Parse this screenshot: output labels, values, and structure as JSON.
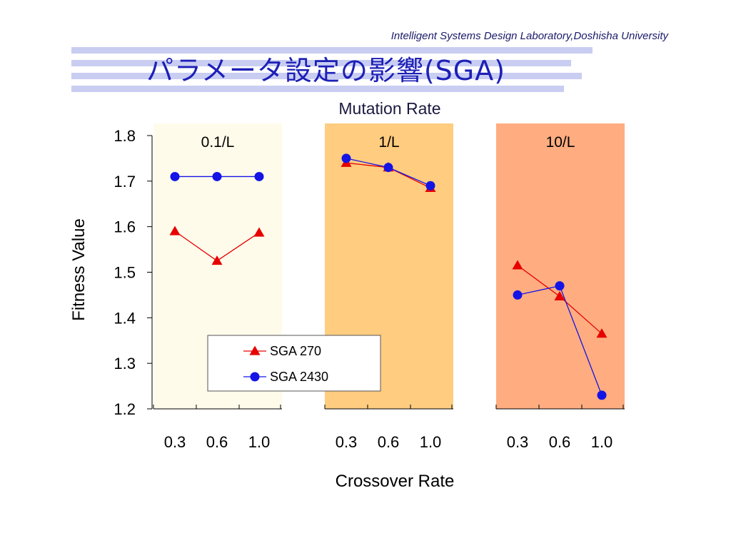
{
  "header": {
    "lab_name": "Intelligent Systems Design Laboratory,Doshisha University"
  },
  "slide": {
    "title": "パラメータ設定の影響(SGA)"
  },
  "colors": {
    "title": "#1d20b6",
    "band_1": "#fffbeb",
    "band_2": "#ffcc80",
    "band_3": "#ffad80",
    "sga_270": "#e60000",
    "sga_2430": "#1414e6"
  },
  "chart_data": {
    "type": "line",
    "title": "Mutation Rate",
    "xlabel": "Crossover Rate",
    "ylabel": "Fitness Value",
    "ylim": [
      1.2,
      1.8
    ],
    "yticks": [
      "1.2",
      "1.3",
      "1.4",
      "1.5",
      "1.6",
      "1.7",
      "1.8"
    ],
    "groups": [
      {
        "label": "0.1/L",
        "color": "#fffbeb",
        "categories": [
          "0.3",
          "0.6",
          "1.0"
        ]
      },
      {
        "label": "1/L",
        "color": "#ffcc80",
        "categories": [
          "0.3",
          "0.6",
          "1.0"
        ]
      },
      {
        "label": "10/L",
        "color": "#ffad80",
        "categories": [
          "0.3",
          "0.6",
          "1.0"
        ]
      }
    ],
    "series": [
      {
        "name": "SGA 270",
        "marker": "triangle",
        "color": "#e60000",
        "values": [
          [
            1.59,
            1.525,
            1.587
          ],
          [
            1.74,
            1.73,
            1.685
          ],
          [
            1.515,
            1.447,
            1.365
          ]
        ]
      },
      {
        "name": "SGA 2430",
        "marker": "circle",
        "color": "#1414e6",
        "values": [
          [
            1.71,
            1.71,
            1.71
          ],
          [
            1.75,
            1.73,
            1.69
          ],
          [
            1.45,
            1.47,
            1.23
          ]
        ]
      }
    ],
    "grid": false,
    "legend_position": "bottom-center"
  }
}
